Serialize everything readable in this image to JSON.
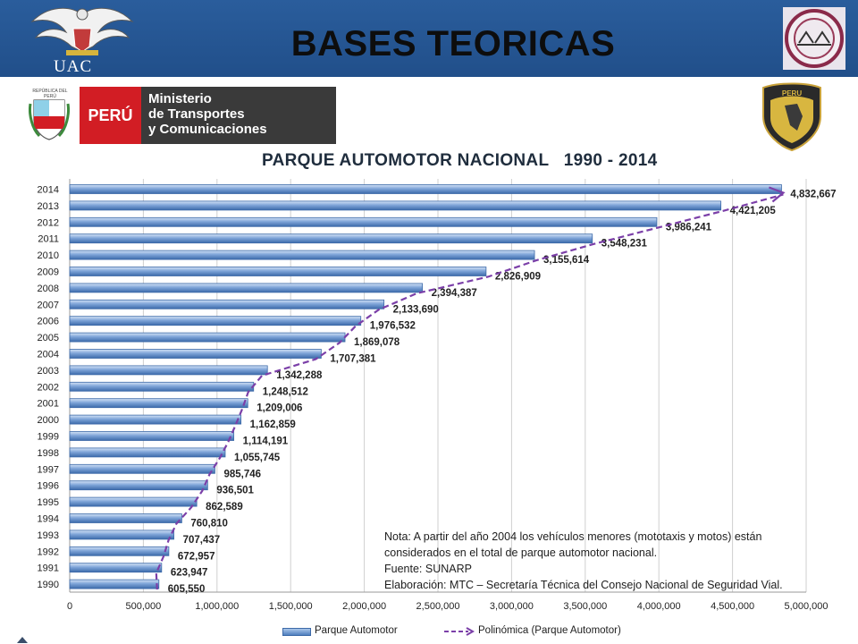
{
  "header": {
    "title": "BASES TEORICAS",
    "uac_label": "UAC"
  },
  "logos": {
    "peru_label": "PERÚ",
    "ministry_lines": [
      "Ministerio",
      "de Transportes",
      "y Comunicaciones"
    ],
    "escudo_label": "REPÚBLICA DEL PERÚ",
    "police_label": "PERU"
  },
  "chart_data": {
    "type": "bar",
    "orientation": "horizontal",
    "title": "PARQUE AUTOMOTOR NACIONAL   1990 - 2014",
    "categories": [
      "2014",
      "2013",
      "2012",
      "2011",
      "2010",
      "2009",
      "2008",
      "2007",
      "2006",
      "2005",
      "2004",
      "2003",
      "2002",
      "2001",
      "2000",
      "1999",
      "1998",
      "1997",
      "1996",
      "1995",
      "1994",
      "1993",
      "1992",
      "1991",
      "1990"
    ],
    "values": [
      4832667,
      4421205,
      3986241,
      3548231,
      3155614,
      2826909,
      2394387,
      2133690,
      1976532,
      1869078,
      1707381,
      1342288,
      1248512,
      1209006,
      1162859,
      1114191,
      1055745,
      985746,
      936501,
      862589,
      760810,
      707437,
      672957,
      623947,
      605550
    ],
    "value_labels": [
      "4,832,667",
      "4,421,205",
      "3,986,241",
      "3,548,231",
      "3,155,614",
      "2,826,909",
      "2,394,387",
      "2,133,690",
      "1,976,532",
      "1,869,078",
      "1,707,381",
      "1,342,288",
      "1,248,512",
      "1,209,006",
      "1,162,859",
      "1,114,191",
      "1,055,745",
      "985,746",
      "936,501",
      "862,589",
      "760,810",
      "707,437",
      "672,957",
      "623,947",
      "605,550"
    ],
    "xlim": [
      0,
      5000000
    ],
    "xticks": [
      0,
      500000,
      1000000,
      1500000,
      2000000,
      2500000,
      3000000,
      3500000,
      4000000,
      4500000,
      5000000
    ],
    "xtick_labels": [
      "0",
      "500,000",
      "1,000,000",
      "1,500,000",
      "2,000,000",
      "2,500,000",
      "3,000,000",
      "3,500,000",
      "4,000,000",
      "4,500,000",
      "5,000,000"
    ],
    "grid": true,
    "series": [
      {
        "name": "Parque Automotor",
        "color": "#4f7fbf"
      },
      {
        "name": "Polinómica (Parque Automotor)",
        "color": "#7b3fa8",
        "style": "dashed"
      }
    ],
    "legend_position": "bottom"
  },
  "note_lines": [
    "Nota: A partir del año 2004 los vehículos menores (mototaxis y motos) están",
    "considerados en el total de parque automotor nacional.",
    "Fuente: SUNARP",
    "Elaboración: MTC – Secretaría Técnica del Consejo Nacional de Seguridad Vial."
  ]
}
